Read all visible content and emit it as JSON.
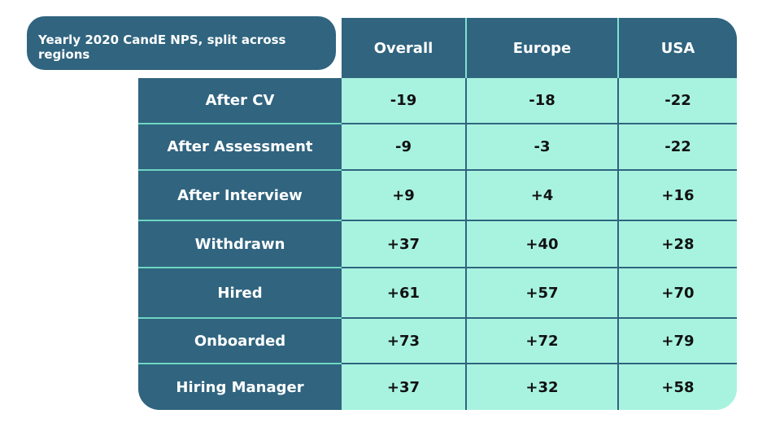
{
  "table": {
    "title": "Yearly 2020 CandE NPS, split across regions",
    "columns": [
      "Overall",
      "Europe",
      "USA"
    ],
    "rows": [
      [
        "After CV",
        "-19",
        "-18",
        "-22"
      ],
      [
        "After Assessment",
        "-9",
        "-3",
        "-22"
      ],
      [
        "After Interview",
        "+9",
        "+4",
        "+16"
      ],
      [
        "Withdrawn",
        "+37",
        "+40",
        "+28"
      ],
      [
        "Hired",
        "+61",
        "+57",
        "+70"
      ],
      [
        "Onboarded",
        "+73",
        "+72",
        "+79"
      ],
      [
        "Hiring Manager",
        "+37",
        "+32",
        "+58"
      ]
    ]
  }
}
